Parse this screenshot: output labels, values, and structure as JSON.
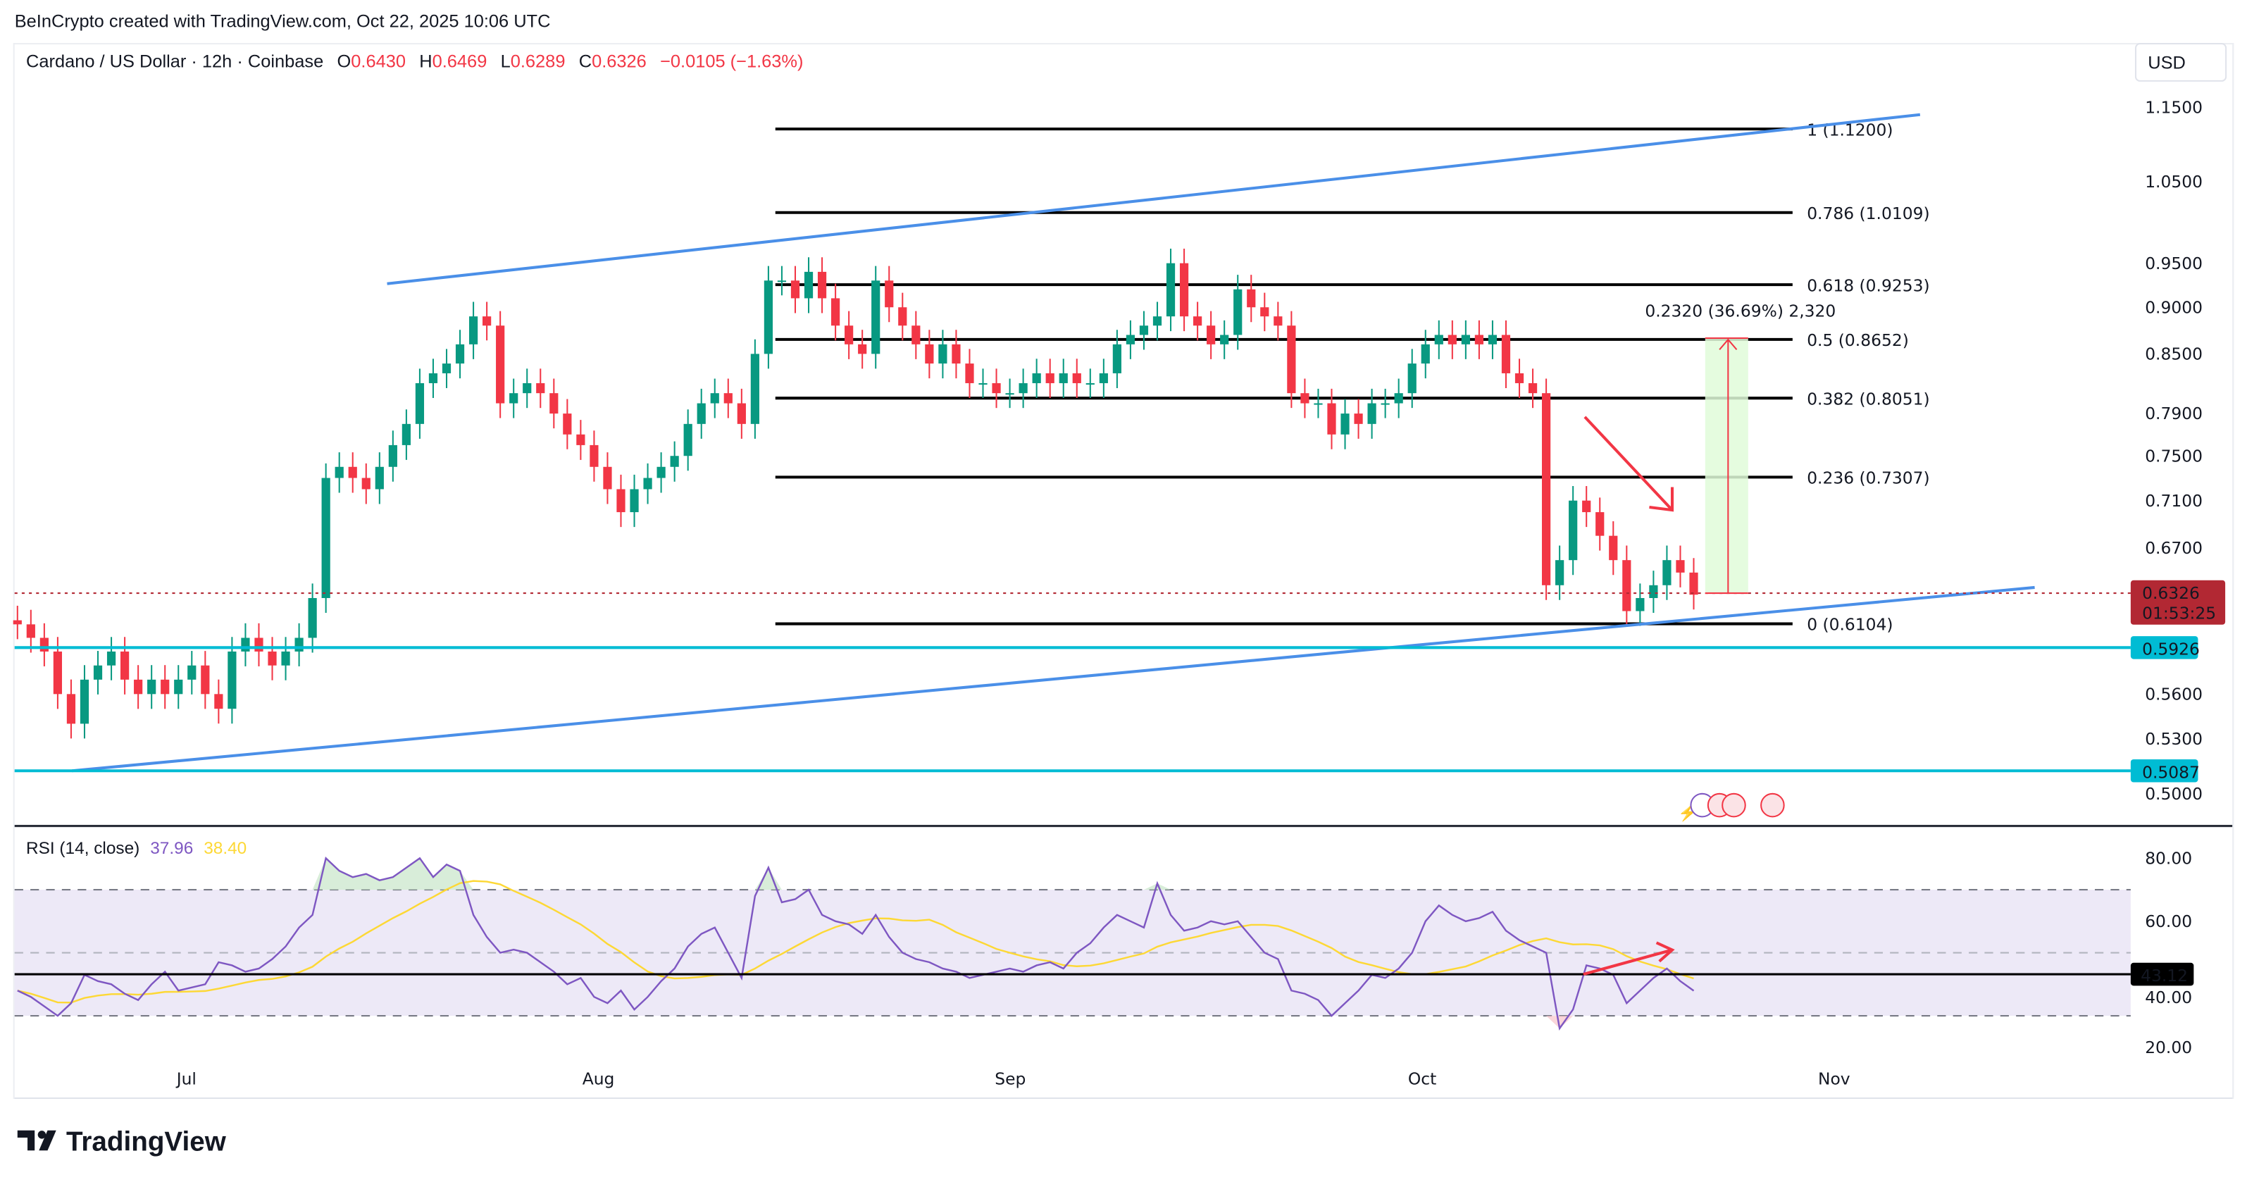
{
  "attribution": "BeInCrypto created with TradingView.com, Oct 22, 2025 10:06 UTC",
  "legend": {
    "symbol": "Cardano / US Dollar · 12h · Coinbase",
    "o_label": "O",
    "o": "0.6430",
    "h_label": "H",
    "h": "0.6469",
    "l_label": "L",
    "l": "0.6289",
    "c_label": "C",
    "c": "0.6326",
    "change": "−0.0105 (−1.63%)"
  },
  "currency_button": "USD",
  "price_axis": {
    "scale": "log",
    "ticks": [
      "1.1500",
      "1.0500",
      "0.9500",
      "0.9000",
      "0.8500",
      "0.7900",
      "0.7500",
      "0.7100",
      "0.6700",
      "0.5600",
      "0.5300",
      "0.5000"
    ],
    "last_price": "0.6326",
    "countdown": "01:53:25",
    "support_1": "0.5926",
    "support_2": "0.5087"
  },
  "time_axis": [
    "Jul",
    "Aug",
    "Sep",
    "Oct",
    "Nov"
  ],
  "fib_levels": [
    {
      "label": "1 (1.1200)",
      "price": 1.12
    },
    {
      "label": "0.786 (1.0109)",
      "price": 1.0109
    },
    {
      "label": "0.618 (0.9253)",
      "price": 0.9253
    },
    {
      "label": "0.5 (0.8652)",
      "price": 0.8652
    },
    {
      "label": "0.382 (0.8051)",
      "price": 0.8051
    },
    {
      "label": "0.236 (0.7307)",
      "price": 0.7307
    },
    {
      "label": "0 (0.6104)",
      "price": 0.6104
    }
  ],
  "measure_label": "0.2320 (36.69%) 2,320",
  "rsi": {
    "title": "RSI (14, close)",
    "value": "37.96",
    "ma_value": "38.40",
    "ticks": [
      "80.00",
      "60.00",
      "40.00",
      "20.00"
    ],
    "marker": "43.12",
    "bands": [
      70,
      50,
      30
    ]
  },
  "colors": {
    "up": "#089981",
    "down": "#f23645",
    "channel": "#4a8fe8",
    "support": "#00bcd4",
    "rsi": "#7e57c2",
    "rsi_ma": "#fdd835",
    "band": "#ede9f7",
    "last": "#b22833"
  },
  "logo": "TradingView",
  "chart_data": {
    "type": "candlestick",
    "interval": "12h",
    "x_start": "Jun 18",
    "x_end": "Oct 21",
    "y_scale": "log",
    "ylim": [
      0.49,
      1.16
    ],
    "closes": [
      0.61,
      0.6,
      0.59,
      0.56,
      0.54,
      0.57,
      0.58,
      0.59,
      0.57,
      0.56,
      0.57,
      0.56,
      0.57,
      0.58,
      0.56,
      0.55,
      0.59,
      0.6,
      0.59,
      0.58,
      0.59,
      0.6,
      0.63,
      0.73,
      0.74,
      0.73,
      0.72,
      0.74,
      0.76,
      0.78,
      0.82,
      0.83,
      0.84,
      0.86,
      0.89,
      0.88,
      0.8,
      0.81,
      0.82,
      0.81,
      0.79,
      0.77,
      0.76,
      0.74,
      0.72,
      0.7,
      0.72,
      0.73,
      0.74,
      0.75,
      0.78,
      0.8,
      0.81,
      0.8,
      0.78,
      0.85,
      0.93,
      0.93,
      0.91,
      0.94,
      0.91,
      0.88,
      0.86,
      0.85,
      0.93,
      0.9,
      0.88,
      0.86,
      0.84,
      0.86,
      0.84,
      0.82,
      0.82,
      0.81,
      0.81,
      0.82,
      0.83,
      0.82,
      0.83,
      0.82,
      0.82,
      0.83,
      0.86,
      0.87,
      0.88,
      0.89,
      0.95,
      0.89,
      0.88,
      0.86,
      0.87,
      0.92,
      0.9,
      0.89,
      0.88,
      0.81,
      0.8,
      0.8,
      0.77,
      0.79,
      0.78,
      0.8,
      0.8,
      0.81,
      0.84,
      0.86,
      0.87,
      0.86,
      0.87,
      0.86,
      0.87,
      0.83,
      0.82,
      0.81,
      0.64,
      0.66,
      0.71,
      0.7,
      0.68,
      0.66,
      0.62,
      0.63,
      0.64,
      0.66,
      0.65,
      0.6326
    ],
    "rsi": [
      38,
      36,
      33,
      30,
      34,
      43,
      41,
      40,
      37,
      35,
      40,
      44,
      38,
      39,
      40,
      47,
      46,
      44,
      45,
      48,
      52,
      58,
      62,
      80,
      76,
      74,
      75,
      73,
      74,
      77,
      80,
      74,
      78,
      76,
      62,
      55,
      50,
      51,
      50,
      47,
      44,
      40,
      42,
      36,
      34,
      38,
      32,
      36,
      41,
      45,
      52,
      56,
      58,
      50,
      42,
      68,
      77,
      66,
      67,
      70,
      62,
      60,
      59,
      56,
      62,
      55,
      50,
      48,
      47,
      45,
      44,
      42,
      43,
      44,
      45,
      44,
      46,
      47,
      45,
      50,
      53,
      58,
      62,
      60,
      58,
      72,
      62,
      57,
      58,
      60,
      59,
      60,
      55,
      50,
      48,
      38,
      37,
      35,
      30,
      34,
      38,
      43,
      42,
      45,
      50,
      60,
      65,
      62,
      60,
      61,
      63,
      57,
      54,
      52,
      50,
      26,
      32,
      46,
      45,
      43,
      34,
      38,
      42,
      45,
      41,
      37.96
    ],
    "rsi_ylim": [
      10,
      90
    ]
  }
}
